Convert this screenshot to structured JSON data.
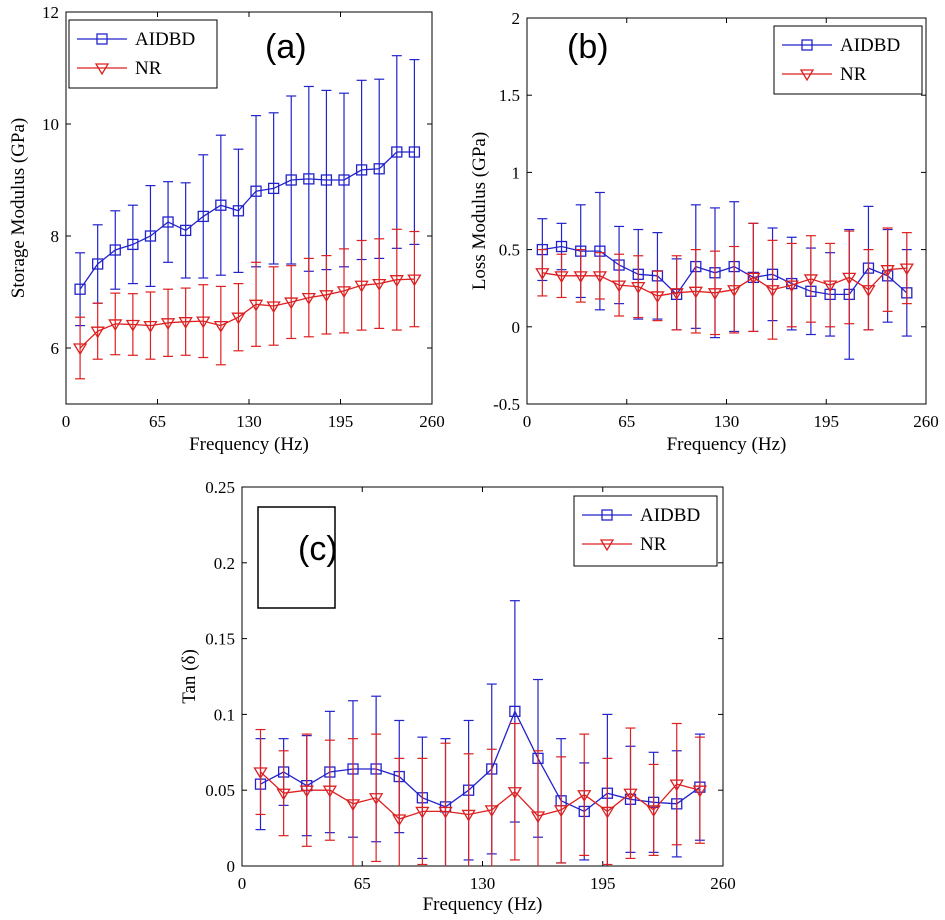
{
  "chart_data": [
    {
      "type": "line",
      "panel_label": "(a)",
      "xlabel": "Frequency (Hz)",
      "ylabel": "Storage Modulus (GPa)",
      "xlim": [
        0,
        260
      ],
      "ylim": [
        5,
        12
      ],
      "xticks": [
        0,
        65,
        130,
        195,
        260
      ],
      "yticks": [
        6,
        8,
        10,
        12
      ],
      "legend_position": "top-left",
      "x": [
        10,
        22.5,
        35,
        47.5,
        60,
        72.5,
        85,
        97.5,
        110,
        122.5,
        135,
        147.5,
        160,
        172.5,
        185,
        197.5,
        210,
        222.5,
        235,
        247.5
      ],
      "series": [
        {
          "name": "AIDBD",
          "color": "#2323cc",
          "marker": "square",
          "values": [
            7.05,
            7.5,
            7.75,
            7.85,
            8.0,
            8.25,
            8.1,
            8.35,
            8.55,
            8.45,
            8.8,
            8.85,
            9.0,
            9.02,
            9.0,
            9.0,
            9.18,
            9.2,
            9.5,
            9.5
          ],
          "errors": [
            0.65,
            0.7,
            0.7,
            0.7,
            0.9,
            0.72,
            0.85,
            1.1,
            1.25,
            1.1,
            1.35,
            1.35,
            1.5,
            1.65,
            1.6,
            1.55,
            1.6,
            1.6,
            1.72,
            1.65
          ]
        },
        {
          "name": "NR",
          "color": "#dd2020",
          "marker": "triangle-down",
          "values": [
            6.0,
            6.3,
            6.43,
            6.42,
            6.4,
            6.45,
            6.47,
            6.48,
            6.4,
            6.55,
            6.78,
            6.75,
            6.82,
            6.9,
            6.95,
            7.02,
            7.12,
            7.15,
            7.22,
            7.23
          ],
          "errors": [
            0.55,
            0.5,
            0.55,
            0.55,
            0.6,
            0.6,
            0.6,
            0.65,
            0.7,
            0.6,
            0.75,
            0.7,
            0.65,
            0.7,
            0.7,
            0.75,
            0.8,
            0.8,
            0.9,
            0.85
          ]
        }
      ]
    },
    {
      "type": "line",
      "panel_label": "(b)",
      "xlabel": "Frequency (Hz)",
      "ylabel": "Loss Modulus (GPa)",
      "xlim": [
        0,
        260
      ],
      "ylim": [
        -0.5,
        2
      ],
      "xticks": [
        0,
        65,
        130,
        195,
        260
      ],
      "yticks": [
        -0.5,
        0,
        0.5,
        1,
        1.5,
        2
      ],
      "legend_position": "top-right",
      "x": [
        10,
        22.5,
        35,
        47.5,
        60,
        72.5,
        85,
        97.5,
        110,
        122.5,
        135,
        147.5,
        160,
        172.5,
        185,
        197.5,
        210,
        222.5,
        235,
        247.5
      ],
      "series": [
        {
          "name": "AIDBD",
          "color": "#2323cc",
          "marker": "square",
          "values": [
            0.5,
            0.52,
            0.49,
            0.49,
            0.4,
            0.34,
            0.33,
            0.21,
            0.39,
            0.35,
            0.39,
            0.32,
            0.34,
            0.28,
            0.23,
            0.21,
            0.21,
            0.38,
            0.33,
            0.22
          ],
          "errors": [
            0.2,
            0.15,
            0.3,
            0.38,
            0.25,
            0.29,
            0.28,
            0.23,
            0.4,
            0.42,
            0.42,
            0.35,
            0.3,
            0.3,
            0.28,
            0.27,
            0.42,
            0.4,
            0.3,
            0.28
          ]
        },
        {
          "name": "NR",
          "color": "#dd2020",
          "marker": "triangle-down",
          "values": [
            0.35,
            0.33,
            0.33,
            0.33,
            0.27,
            0.26,
            0.2,
            0.22,
            0.23,
            0.22,
            0.24,
            0.32,
            0.24,
            0.27,
            0.31,
            0.27,
            0.32,
            0.24,
            0.37,
            0.38
          ],
          "errors": [
            0.15,
            0.14,
            0.17,
            0.15,
            0.2,
            0.2,
            0.16,
            0.24,
            0.27,
            0.27,
            0.28,
            0.35,
            0.32,
            0.27,
            0.28,
            0.27,
            0.3,
            0.26,
            0.27,
            0.23
          ]
        }
      ]
    },
    {
      "type": "line",
      "panel_label": "(c)",
      "xlabel": "Frequency (Hz)",
      "ylabel": "Tan (δ)",
      "xlim": [
        0,
        260
      ],
      "ylim": [
        0,
        0.25
      ],
      "xticks": [
        0,
        65,
        130,
        195,
        260
      ],
      "yticks": [
        0,
        0.05,
        0.1,
        0.15,
        0.2,
        0.25
      ],
      "legend_position": "top-right",
      "x": [
        10,
        22.5,
        35,
        47.5,
        60,
        72.5,
        85,
        97.5,
        110,
        122.5,
        135,
        147.5,
        160,
        172.5,
        185,
        197.5,
        210,
        222.5,
        235,
        247.5
      ],
      "series": [
        {
          "name": "AIDBD",
          "color": "#2323cc",
          "marker": "square",
          "values": [
            0.054,
            0.062,
            0.053,
            0.062,
            0.064,
            0.064,
            0.059,
            0.045,
            0.039,
            0.05,
            0.064,
            0.102,
            0.071,
            0.043,
            0.036,
            0.048,
            0.044,
            0.042,
            0.041,
            0.052
          ],
          "errors": [
            0.03,
            0.022,
            0.033,
            0.04,
            0.045,
            0.048,
            0.037,
            0.04,
            0.045,
            0.046,
            0.056,
            0.073,
            0.052,
            0.041,
            0.032,
            0.052,
            0.035,
            0.033,
            0.035,
            0.035
          ]
        },
        {
          "name": "NR",
          "color": "#dd2020",
          "marker": "triangle-down",
          "values": [
            0.062,
            0.048,
            0.05,
            0.05,
            0.041,
            0.045,
            0.031,
            0.036,
            0.036,
            0.034,
            0.037,
            0.049,
            0.033,
            0.037,
            0.047,
            0.036,
            0.048,
            0.037,
            0.054,
            0.05
          ],
          "errors": [
            0.028,
            0.028,
            0.037,
            0.033,
            0.043,
            0.042,
            0.04,
            0.035,
            0.045,
            0.04,
            0.04,
            0.045,
            0.043,
            0.035,
            0.04,
            0.035,
            0.043,
            0.03,
            0.04,
            0.035
          ]
        }
      ]
    }
  ]
}
